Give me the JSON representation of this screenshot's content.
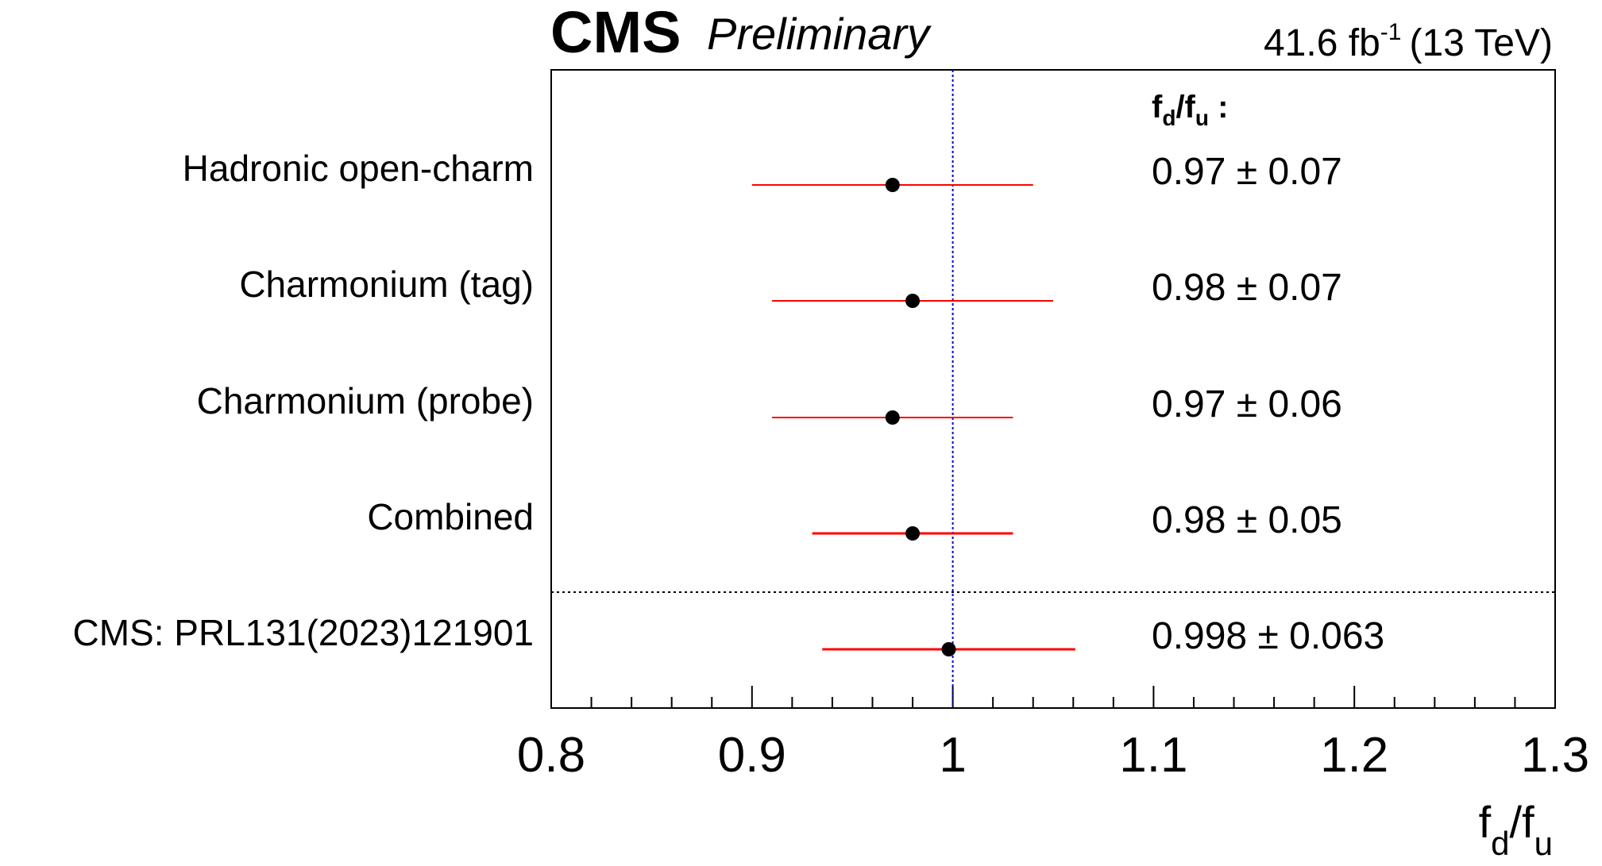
{
  "header": {
    "experiment": "CMS",
    "status": "Preliminary",
    "lumi_value": "41.6 fb",
    "lumi_exponent": "-1",
    "lumi_energy": "(13 TeV)"
  },
  "chart_data": {
    "type": "scatter",
    "subtype": "forest-plot",
    "title": "",
    "xlabel_base": "f",
    "xlabel_sub1": "d",
    "xlabel_slash": "/f",
    "xlabel_sub2": "u",
    "column_header": {
      "base": "f",
      "sub1": "d",
      "slash": "/f",
      "sub2": "u",
      "suffix": " :"
    },
    "xlim": [
      0.8,
      1.3
    ],
    "xticks": [
      "0.8",
      "0.9",
      "1",
      "1.1",
      "1.2",
      "1.3"
    ],
    "reference_line": 1.0,
    "colors": {
      "marker": "#000000",
      "error_bar": "#ff0000",
      "reference_line": "#0000cc",
      "separator": "#000000"
    },
    "entries": [
      {
        "label": "Hadronic open-charm",
        "value": 0.97,
        "low": 0.9,
        "high": 1.04,
        "text": "0.97 ± 0.07"
      },
      {
        "label": "Charmonium (tag)",
        "value": 0.98,
        "low": 0.91,
        "high": 1.05,
        "text": "0.98 ± 0.07"
      },
      {
        "label": "Charmonium (probe)",
        "value": 0.97,
        "low": 0.91,
        "high": 1.03,
        "text": "0.97 ± 0.06"
      },
      {
        "label": "Combined",
        "value": 0.98,
        "low": 0.93,
        "high": 1.03,
        "text": "0.98 ± 0.05"
      },
      {
        "label": "CMS: PRL131(2023)121901",
        "value": 0.998,
        "low": 0.935,
        "high": 1.061,
        "text": "0.998 ± 0.063"
      }
    ],
    "separator_after_index": 3
  }
}
